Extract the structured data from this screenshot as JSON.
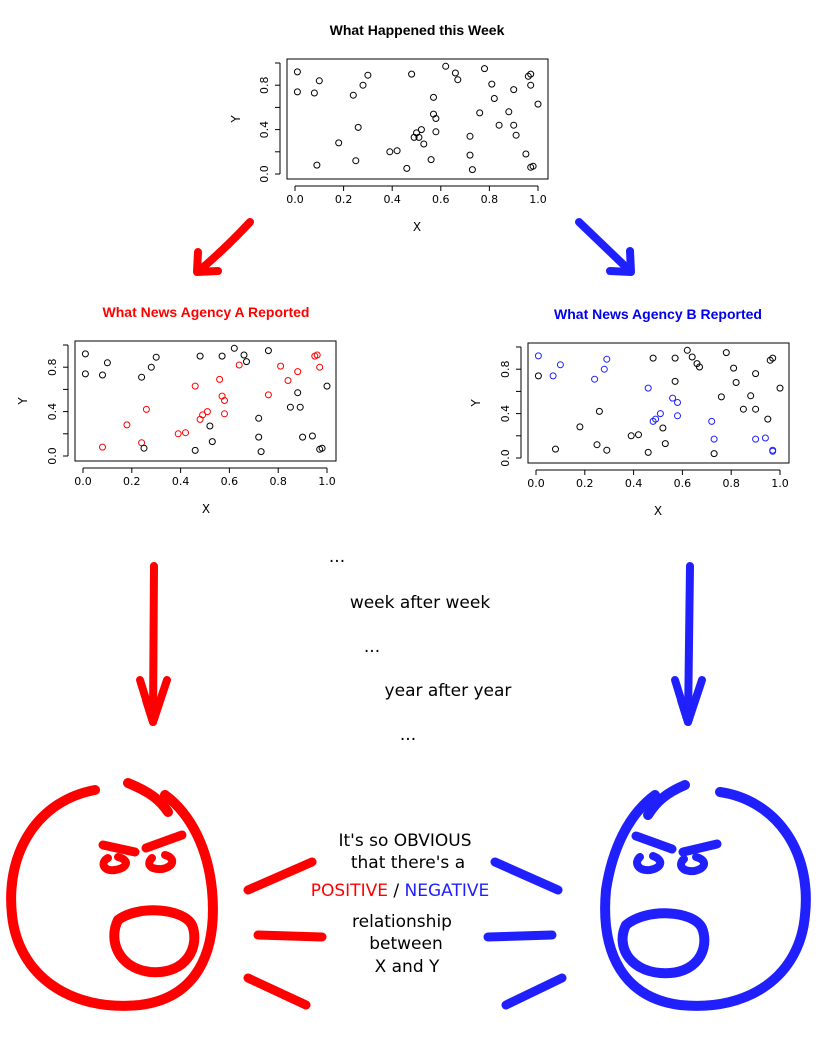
{
  "colors": {
    "black": "#000000",
    "red": "#ff0000",
    "blue": "#2020ff",
    "text_blue": "#0000ee"
  },
  "chart_data": [
    {
      "id": "week",
      "type": "scatter",
      "title": "What Happened this Week",
      "xlabel": "X",
      "ylabel": "Y",
      "xlim": [
        0,
        1
      ],
      "ylim": [
        0,
        1
      ],
      "xticks": [
        "0.0",
        "0.2",
        "0.4",
        "0.6",
        "0.8",
        "1.0"
      ],
      "yticks": [
        "0.0",
        "0.4",
        "0.8"
      ],
      "series": [
        {
          "color": "#000000",
          "x": [
            0.01,
            0.01,
            0.08,
            0.09,
            0.1,
            0.18,
            0.24,
            0.25,
            0.26,
            0.28,
            0.3,
            0.39,
            0.42,
            0.46,
            0.48,
            0.49,
            0.5,
            0.51,
            0.52,
            0.53,
            0.56,
            0.57,
            0.57,
            0.58,
            0.58,
            0.62,
            0.66,
            0.67,
            0.72,
            0.72,
            0.73,
            0.76,
            0.78,
            0.81,
            0.82,
            0.84,
            0.88,
            0.9,
            0.9,
            0.91,
            0.95,
            0.96,
            0.97,
            0.97,
            0.97,
            0.98,
            1.0
          ],
          "y": [
            0.92,
            0.74,
            0.73,
            0.08,
            0.84,
            0.28,
            0.71,
            0.12,
            0.42,
            0.8,
            0.89,
            0.2,
            0.21,
            0.05,
            0.9,
            0.33,
            0.37,
            0.33,
            0.4,
            0.27,
            0.13,
            0.69,
            0.54,
            0.5,
            0.38,
            0.97,
            0.91,
            0.85,
            0.34,
            0.17,
            0.04,
            0.55,
            0.95,
            0.81,
            0.68,
            0.44,
            0.56,
            0.76,
            0.44,
            0.35,
            0.18,
            0.88,
            0.9,
            0.8,
            0.06,
            0.07,
            0.63
          ]
        }
      ]
    },
    {
      "id": "agencyA",
      "type": "scatter",
      "title": "What News Agency A Reported",
      "xlabel": "X",
      "ylabel": "Y",
      "xlim": [
        0,
        1
      ],
      "ylim": [
        0,
        1
      ],
      "xticks": [
        "0.0",
        "0.2",
        "0.4",
        "0.6",
        "0.8",
        "1.0"
      ],
      "yticks": [
        "0.0",
        "0.4",
        "0.8"
      ],
      "series": [
        {
          "color": "#ff0000",
          "x": [
            0.08,
            0.18,
            0.24,
            0.26,
            0.39,
            0.42,
            0.46,
            0.48,
            0.49,
            0.51,
            0.56,
            0.57,
            0.58,
            0.58,
            0.64,
            0.76,
            0.81,
            0.84,
            0.88,
            0.95,
            0.96,
            0.97
          ],
          "y": [
            0.08,
            0.28,
            0.12,
            0.42,
            0.2,
            0.21,
            0.63,
            0.33,
            0.37,
            0.4,
            0.69,
            0.54,
            0.5,
            0.38,
            0.82,
            0.55,
            0.81,
            0.68,
            0.76,
            0.9,
            0.91,
            0.8
          ]
        },
        {
          "color": "#000000",
          "x": [
            0.01,
            0.01,
            0.08,
            0.1,
            0.24,
            0.25,
            0.28,
            0.3,
            0.46,
            0.48,
            0.52,
            0.53,
            0.57,
            0.62,
            0.66,
            0.67,
            0.72,
            0.72,
            0.73,
            0.76,
            0.85,
            0.88,
            0.89,
            0.9,
            0.94,
            0.97,
            0.98,
            1.0
          ],
          "y": [
            0.92,
            0.74,
            0.73,
            0.84,
            0.71,
            0.07,
            0.8,
            0.89,
            0.05,
            0.9,
            0.27,
            0.13,
            0.9,
            0.97,
            0.91,
            0.85,
            0.34,
            0.17,
            0.04,
            0.95,
            0.44,
            0.57,
            0.44,
            0.17,
            0.18,
            0.06,
            0.07,
            0.63
          ]
        }
      ]
    },
    {
      "id": "agencyB",
      "type": "scatter",
      "title": "What News Agency B Reported",
      "xlabel": "X",
      "ylabel": "Y",
      "xlim": [
        0,
        1
      ],
      "ylim": [
        0,
        1
      ],
      "xticks": [
        "0.0",
        "0.2",
        "0.4",
        "0.6",
        "0.8",
        "1.0"
      ],
      "yticks": [
        "0.0",
        "0.4",
        "0.8"
      ],
      "series": [
        {
          "color": "#2020ff",
          "x": [
            0.01,
            0.07,
            0.1,
            0.24,
            0.28,
            0.29,
            0.46,
            0.48,
            0.49,
            0.51,
            0.56,
            0.58,
            0.58,
            0.72,
            0.73,
            0.9,
            0.94,
            0.97,
            0.97
          ],
          "y": [
            0.92,
            0.74,
            0.84,
            0.71,
            0.8,
            0.89,
            0.63,
            0.33,
            0.35,
            0.4,
            0.54,
            0.5,
            0.38,
            0.33,
            0.17,
            0.17,
            0.18,
            0.06,
            0.07
          ]
        },
        {
          "color": "#000000",
          "x": [
            0.01,
            0.08,
            0.18,
            0.25,
            0.26,
            0.29,
            0.39,
            0.42,
            0.46,
            0.48,
            0.52,
            0.53,
            0.57,
            0.57,
            0.62,
            0.64,
            0.66,
            0.67,
            0.73,
            0.76,
            0.78,
            0.81,
            0.82,
            0.85,
            0.88,
            0.9,
            0.9,
            0.95,
            0.96,
            0.97,
            1.0
          ],
          "y": [
            0.74,
            0.08,
            0.28,
            0.12,
            0.42,
            0.07,
            0.2,
            0.21,
            0.05,
            0.9,
            0.27,
            0.13,
            0.9,
            0.69,
            0.97,
            0.91,
            0.85,
            0.82,
            0.04,
            0.55,
            0.95,
            0.81,
            0.68,
            0.44,
            0.56,
            0.76,
            0.44,
            0.35,
            0.88,
            0.9,
            0.63
          ]
        }
      ]
    }
  ],
  "captions": {
    "ellipsis1": "...",
    "week_after_week": "week after week",
    "ellipsis2": "...",
    "year_after_year": "year after year",
    "ellipsis3": "..."
  },
  "speech": {
    "line1": "It's so OBVIOUS",
    "line2": "that there's a",
    "positive": "POSITIVE",
    "slash": "/",
    "negative": "NEGATIVE",
    "line4": "relationship",
    "line5": "between",
    "line6": "X and Y"
  }
}
